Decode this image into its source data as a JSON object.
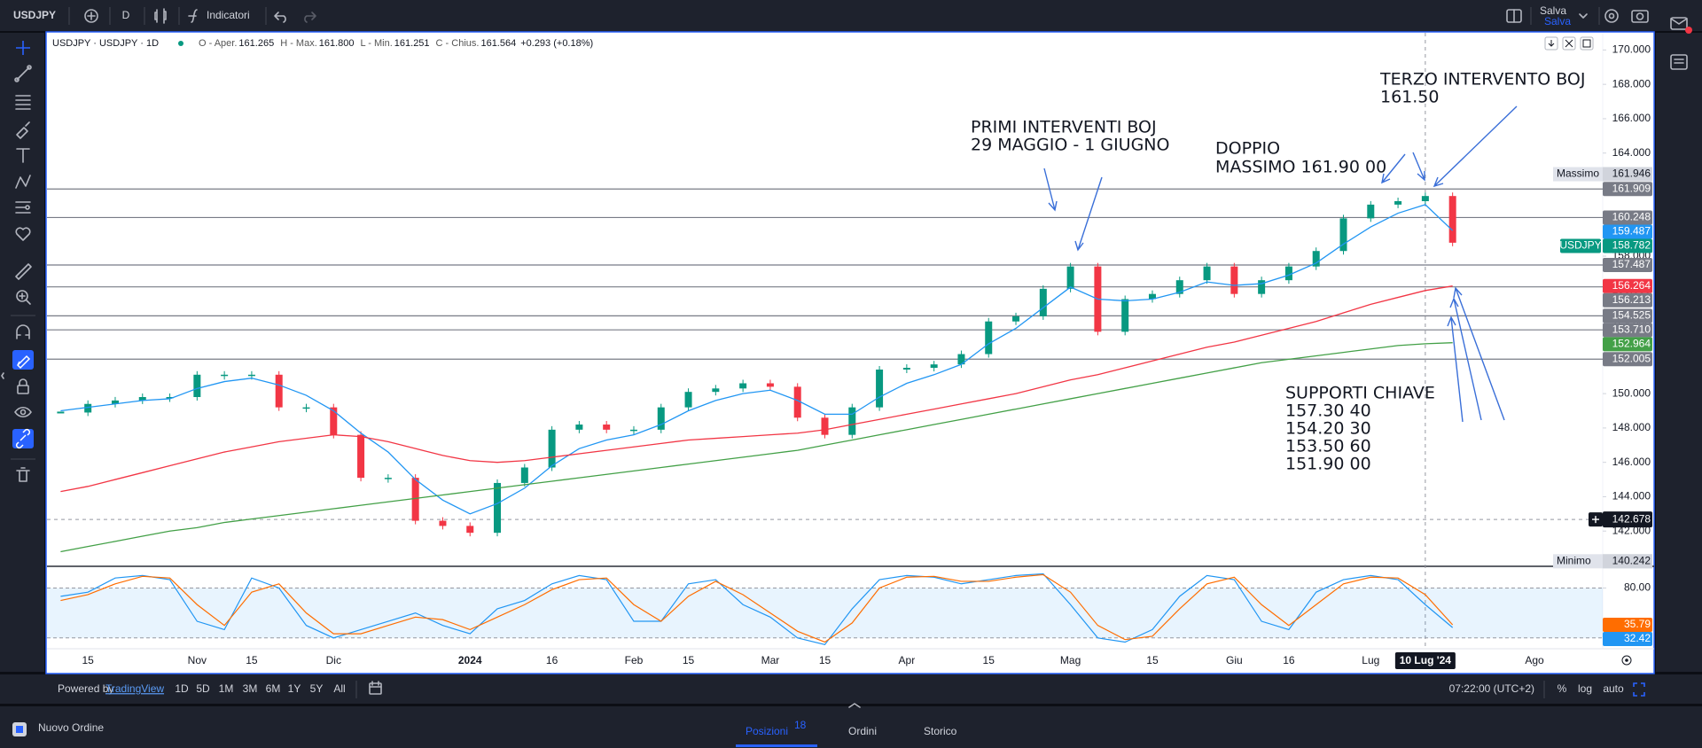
{
  "toolbar": {
    "symbol": "USDJPY",
    "interval": "D",
    "indicators": "Indicatori",
    "save": "Salva",
    "save_sub": "Salva"
  },
  "legend": {
    "title": "USDJPY · USDJPY · 1D",
    "items": [
      "O - Aper.",
      "161.265",
      "H - Max.",
      "161.800",
      "L - Min.",
      "161.251",
      "C - Chius.",
      "161.564",
      "+0.293 (+0.18%)"
    ]
  },
  "annotations": [
    [
      "PRIMI INTERVENTI BOJ",
      "29 MAGGIO - 1 GIUGNO"
    ],
    [
      "DOPPIO",
      "MASSIMO 161.90 00"
    ],
    [
      "TERZO INTERVENTO BOJ",
      "161.50"
    ],
    [
      "SUPPORTI CHIAVE",
      "157.30 40",
      "154.20 30",
      "153.50 60",
      "151.90 00"
    ]
  ],
  "chart_data": [
    {
      "type": "line",
      "categories": [
        null,
        "15",
        null,
        null,
        null,
        "Nov",
        null,
        "15",
        null,
        null,
        "Dic",
        null,
        null,
        null,
        null,
        "2024",
        null,
        null,
        "16",
        null,
        null,
        "Feb",
        null,
        "15",
        null,
        null,
        "Mar",
        null,
        "15",
        null,
        null,
        "Apr",
        null,
        null,
        "15",
        null,
        null,
        "Mag",
        null,
        null,
        "15",
        null,
        null,
        "Giu",
        null,
        "16",
        null,
        null,
        "Lug",
        null,
        null,
        null,
        null,
        null,
        "Ago",
        null,
        null
      ],
      "series": [
        {
          "style": "candles",
          "color": "#089981",
          "down_color": "#f23645",
          "values": [
            148.9,
            149.4,
            149.6,
            149.8,
            149.8,
            151.1,
            151.1,
            151.1,
            149.2,
            149.2,
            147.6,
            145.1,
            145.1,
            142.6,
            142.3,
            141.9,
            144.8,
            145.7,
            147.9,
            148.2,
            147.9,
            147.9,
            149.2,
            150.1,
            150.3,
            150.6,
            150.4,
            148.6,
            147.6,
            149.2,
            151.4,
            151.5,
            151.7,
            152.3,
            154.2,
            154.5,
            156.1,
            157.4,
            153.6,
            155.5,
            155.8,
            156.6,
            157.4,
            155.8,
            156.6,
            157.4,
            158.3,
            160.2,
            161.0,
            161.2,
            161.5,
            158.782,
            null,
            null,
            null,
            null,
            null
          ]
        },
        {
          "style": "line",
          "color": "#2196f3",
          "values": [
            149.0,
            149.2,
            149.4,
            149.6,
            149.7,
            150.3,
            150.7,
            150.9,
            150.5,
            149.9,
            149.0,
            147.7,
            146.6,
            145.0,
            143.8,
            143.0,
            143.6,
            144.5,
            145.8,
            146.8,
            147.3,
            147.6,
            148.2,
            149.0,
            149.6,
            150.0,
            150.2,
            149.6,
            148.8,
            148.8,
            149.8,
            150.6,
            151.1,
            151.7,
            152.9,
            153.8,
            155.0,
            156.2,
            155.5,
            155.4,
            155.5,
            155.9,
            156.5,
            156.3,
            156.4,
            156.9,
            157.6,
            158.7,
            159.7,
            160.5,
            161.0,
            159.487,
            null,
            null,
            null,
            null,
            null
          ]
        },
        {
          "style": "line",
          "color": "#f23645",
          "values": [
            144.3,
            144.6,
            145.0,
            145.4,
            145.8,
            146.2,
            146.6,
            146.9,
            147.2,
            147.4,
            147.6,
            147.5,
            147.2,
            146.8,
            146.4,
            146.1,
            146.0,
            146.1,
            146.3,
            146.5,
            146.7,
            146.9,
            147.1,
            147.3,
            147.4,
            147.5,
            147.6,
            147.7,
            147.9,
            148.2,
            148.5,
            148.8,
            149.1,
            149.4,
            149.7,
            150.0,
            150.4,
            150.8,
            151.1,
            151.5,
            151.9,
            152.3,
            152.7,
            153.0,
            153.4,
            153.8,
            154.2,
            154.7,
            155.2,
            155.6,
            156.0,
            156.264,
            null,
            null,
            null,
            null,
            null
          ]
        },
        {
          "style": "line",
          "color": "#43a047",
          "values": [
            140.8,
            141.1,
            141.4,
            141.7,
            142.0,
            142.2,
            142.5,
            142.7,
            142.9,
            143.1,
            143.3,
            143.5,
            143.7,
            143.9,
            144.1,
            144.3,
            144.5,
            144.7,
            144.9,
            145.1,
            145.3,
            145.5,
            145.7,
            145.9,
            146.1,
            146.3,
            146.5,
            146.7,
            147.0,
            147.3,
            147.6,
            147.9,
            148.2,
            148.5,
            148.8,
            149.1,
            149.4,
            149.7,
            150.0,
            150.3,
            150.6,
            150.9,
            151.2,
            151.5,
            151.8,
            152.0,
            152.2,
            152.4,
            152.6,
            152.8,
            152.9,
            152.964,
            null,
            null,
            null,
            null,
            null
          ]
        }
      ],
      "ylim": [
        140,
        171
      ],
      "yticks": [
        {
          "value": 142,
          "label": "142.000"
        },
        {
          "value": 144,
          "label": "144.000"
        },
        {
          "value": 146,
          "label": "146.000"
        },
        {
          "value": 148,
          "label": "148.000"
        },
        {
          "value": 150,
          "label": "150.000"
        },
        {
          "value": 152,
          "label": "152.000"
        },
        {
          "value": 154,
          "label": "154.000"
        },
        {
          "value": 156,
          "label": "156.000"
        },
        {
          "value": 158,
          "label": "158.000"
        },
        {
          "value": 160,
          "label": "160.000"
        },
        {
          "value": 162,
          "label": "162.000"
        },
        {
          "value": 164,
          "label": "164.000"
        },
        {
          "value": 166,
          "label": "166.000"
        },
        {
          "value": 168,
          "label": "168.000"
        },
        {
          "value": 170,
          "label": "170.000"
        }
      ],
      "grid": false,
      "hlines": [
        {
          "value": 161.909,
          "label": "161.909"
        },
        {
          "value": 160.248,
          "label": "160.248"
        },
        {
          "value": 157.487,
          "label": "157.487"
        },
        {
          "value": 156.213,
          "label": "156.213"
        },
        {
          "value": 154.525,
          "label": "154.525"
        },
        {
          "value": 153.71,
          "label": "153.710"
        },
        {
          "value": 152.005,
          "label": "152.005"
        }
      ],
      "extremes": {
        "high": {
          "label": "Massimo",
          "value": 161.946
        },
        "low": {
          "label": "Minimo",
          "value": 140.242
        }
      },
      "crosshair": {
        "date": "10 Lug '24",
        "price": {
          "value": 142.678,
          "label": "142.678"
        }
      }
    },
    {
      "type": "line",
      "series": [
        {
          "color": "#2196f3",
          "values": [
            70,
            75,
            92,
            95,
            90,
            40,
            30,
            92,
            80,
            35,
            20,
            30,
            40,
            50,
            35,
            25,
            55,
            65,
            85,
            95,
            90,
            40,
            40,
            85,
            90,
            60,
            45,
            20,
            12,
            55,
            90,
            95,
            93,
            85,
            90,
            95,
            97,
            60,
            20,
            15,
            30,
            70,
            95,
            90,
            40,
            30,
            75,
            90,
            95,
            90,
            60,
            32.42,
            null,
            null,
            null,
            null,
            null
          ]
        },
        {
          "color": "#ff6d00",
          "values": [
            65,
            72,
            85,
            94,
            92,
            60,
            35,
            75,
            85,
            50,
            25,
            25,
            35,
            45,
            42,
            30,
            45,
            60,
            78,
            90,
            92,
            60,
            40,
            70,
            88,
            72,
            50,
            28,
            15,
            38,
            80,
            93,
            94,
            88,
            88,
            93,
            96,
            75,
            35,
            18,
            22,
            55,
            85,
            93,
            60,
            35,
            60,
            85,
            93,
            92,
            72,
            35.79,
            null,
            null,
            null,
            null,
            null
          ]
        }
      ],
      "ylim": [
        7,
        105
      ],
      "yticks": [
        {
          "value": 80,
          "label": "80.00"
        }
      ],
      "band": [
        20,
        80
      ]
    }
  ],
  "bottom_bar": {
    "powered": "Powered by",
    "brand": "TradingView",
    "ranges": [
      "1D",
      "5D",
      "1M",
      "3M",
      "6M",
      "1Y",
      "5Y",
      "All"
    ],
    "clock": "07:22:00 (UTC+2)",
    "options": [
      "%",
      "log",
      "auto"
    ]
  },
  "footer": {
    "order": "Nuovo Ordine",
    "tabs": [
      "Posizioni",
      "Ordini",
      "Storico"
    ],
    "positions_count": "18"
  }
}
